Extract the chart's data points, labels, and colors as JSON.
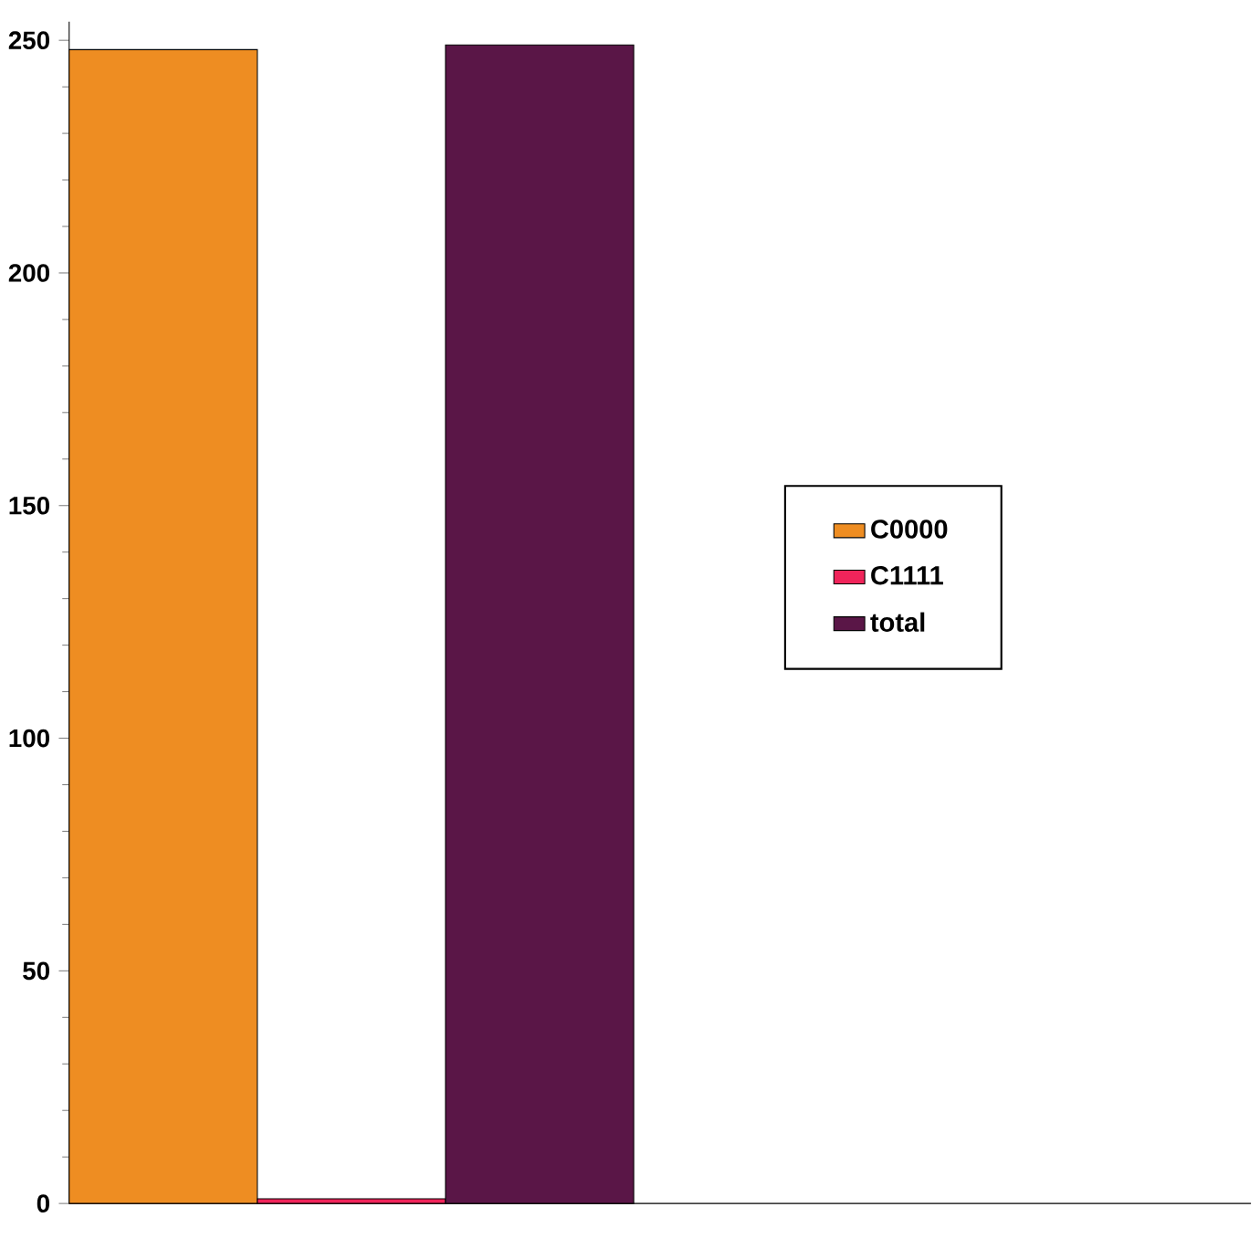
{
  "chart_data": {
    "type": "bar",
    "categories": [
      null
    ],
    "series": [
      {
        "name": "C0000",
        "color": "#ee8d22",
        "values": [
          248
        ]
      },
      {
        "name": "C1111",
        "color": "#f0245a",
        "values": [
          1
        ]
      },
      {
        "name": "total",
        "color": "#5a1647",
        "values": [
          249
        ]
      }
    ],
    "ylim": [
      0,
      254
    ],
    "yticks": [
      0,
      50,
      100,
      150,
      200,
      250
    ],
    "legend": "right",
    "tick_labels": "y"
  }
}
